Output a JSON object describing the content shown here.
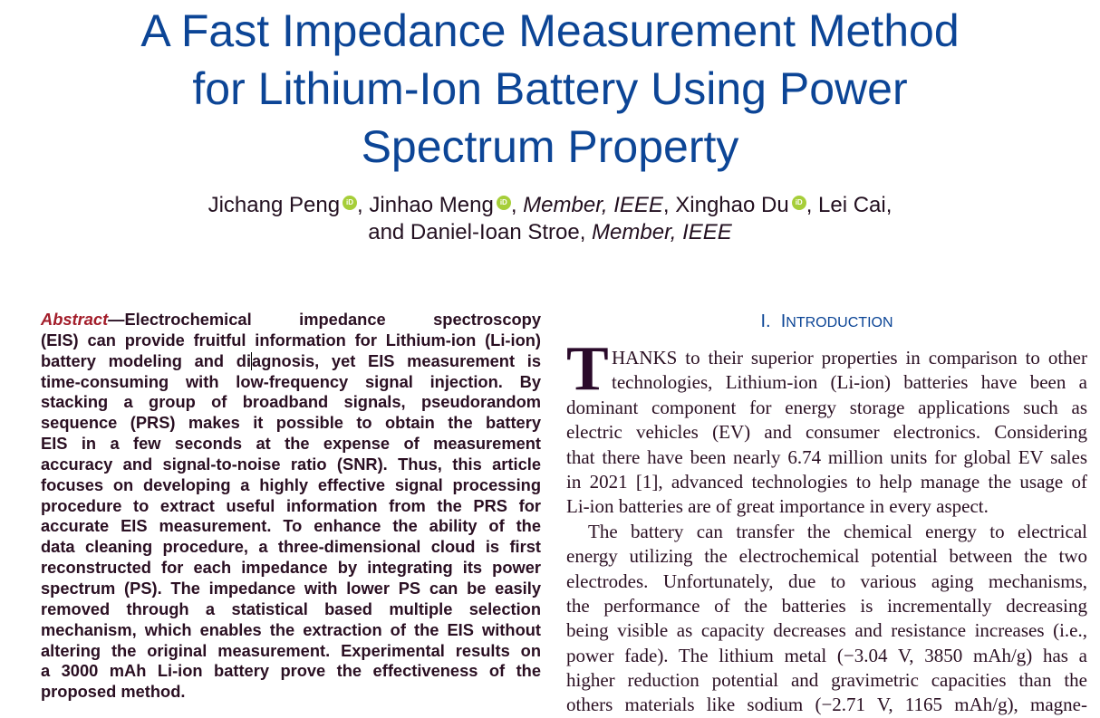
{
  "title": {
    "lines": [
      "A Fast Impedance Measurement Method",
      "for Lithium-Ion Battery Using Power",
      "Spectrum Property"
    ]
  },
  "authors": {
    "a1": "Jichang Peng",
    "a2": "Jinhao Meng",
    "m1": "Member, IEEE",
    "a3": "Xinghao Du",
    "a4": "Lei Cai,",
    "and": "and Daniel-Ioan Stroe",
    "m2": "Member, IEEE",
    "orcid_icon": "orcid-icon",
    "orcid_color": "#a6ce39"
  },
  "abstract": {
    "label": "Abstract",
    "lines": [
      "—Electrochemical impedance spectroscopy",
      "(EIS) can provide fruitful information for Lithium-ion (Li-ion)",
      "battery modeling and di|agnosis, yet EIS measurement is",
      "time-consuming with low-frequency signal injection. By",
      "stacking a group of broadband signals, pseudorandom",
      "sequence (PRS) makes it possible to obtain the battery",
      "EIS in a few seconds at the expense of measurement",
      "accuracy and signal-to-noise ratio (SNR). Thus, this article",
      "focuses on developing a highly effective signal processing",
      "procedure to extract useful information from the PRS for",
      "accurate EIS measurement. To enhance the ability of the",
      "data cleaning procedure, a three-dimensional cloud is first",
      "reconstructed for each impedance by integrating its power",
      "spectrum (PS). The impedance with lower PS can be easily",
      "removed through a statistical based multiple selection",
      "mechanism, which enables the extraction of the EIS without",
      "altering the original measurement. Experimental results on",
      "a 3000 mAh Li-ion battery prove the effectiveness of the",
      "proposed method."
    ]
  },
  "introduction": {
    "number": "I.",
    "heading_first": "I",
    "heading_rest": "NTRODUCTION",
    "dropcap": "T",
    "lines": [
      "HANKS to their superior properties in comparison to other",
      "technologies, Lithium-ion (Li-ion) batteries have been a",
      "dominant component for energy storage applications such as",
      "electric vehicles (EV) and consumer electronics. Considering",
      "that there have been nearly 6.74 million units for global EV sales",
      "in 2021 [1], advanced technologies to help manage the usage of",
      "Li-ion batteries are of great importance in every aspect.",
      "The battery can transfer the chemical energy to electrical",
      "energy utilizing the electrochemical potential between the two",
      "electrodes. Unfortunately, due to various aging mechanisms,",
      "the performance of the batteries is incrementally decreasing",
      "being visible as capacity decreases and resistance increases (i.e.,",
      "power fade). The lithium metal (−3.04 V, 3850 mAh/g) has a",
      "higher reduction potential and gravimetric capacities than the",
      "others materials like sodium (−2.71 V, 1165 mAh/g), magne-"
    ]
  }
}
